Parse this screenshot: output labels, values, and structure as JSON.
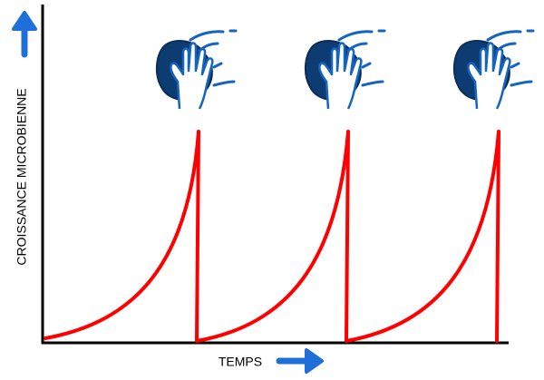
{
  "axes": {
    "y_label": "CROISSANCE MICROBIENNE",
    "x_label": "TEMPS"
  }
}
